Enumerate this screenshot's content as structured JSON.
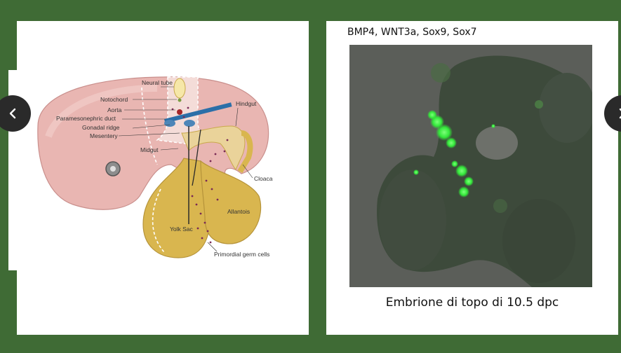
{
  "left_slide": {
    "labels": {
      "neural_tube": "Neural tube",
      "notochord": "Notochord",
      "aorta": "Aorta",
      "paramesonephric_duct": "Paramesonephric duct",
      "gonadal_ridge": "Gonadal ridge",
      "mesentery": "Mesentery",
      "midgut": "Midgut",
      "hindgut": "Hindgut",
      "cloaca": "Cloaca",
      "allantois": "Allantois",
      "yolk_sac": "Yolk Sac",
      "primordial_germ_cells": "Primordial germ cells"
    }
  },
  "right_slide": {
    "caption_top": "BMP4, WNT3a, Sox9, Sox7",
    "caption_bottom": "Embrione di topo di 10.5 dpc"
  },
  "nav": {
    "prev_icon": "chevron-left-icon",
    "next_icon": "chevron-right-icon"
  },
  "colors": {
    "background": "#3f6b35",
    "embryo_pink": "#e9b6b2",
    "yolk_yellow": "#d9b64f",
    "fluorescence_green": "#33e83a"
  }
}
